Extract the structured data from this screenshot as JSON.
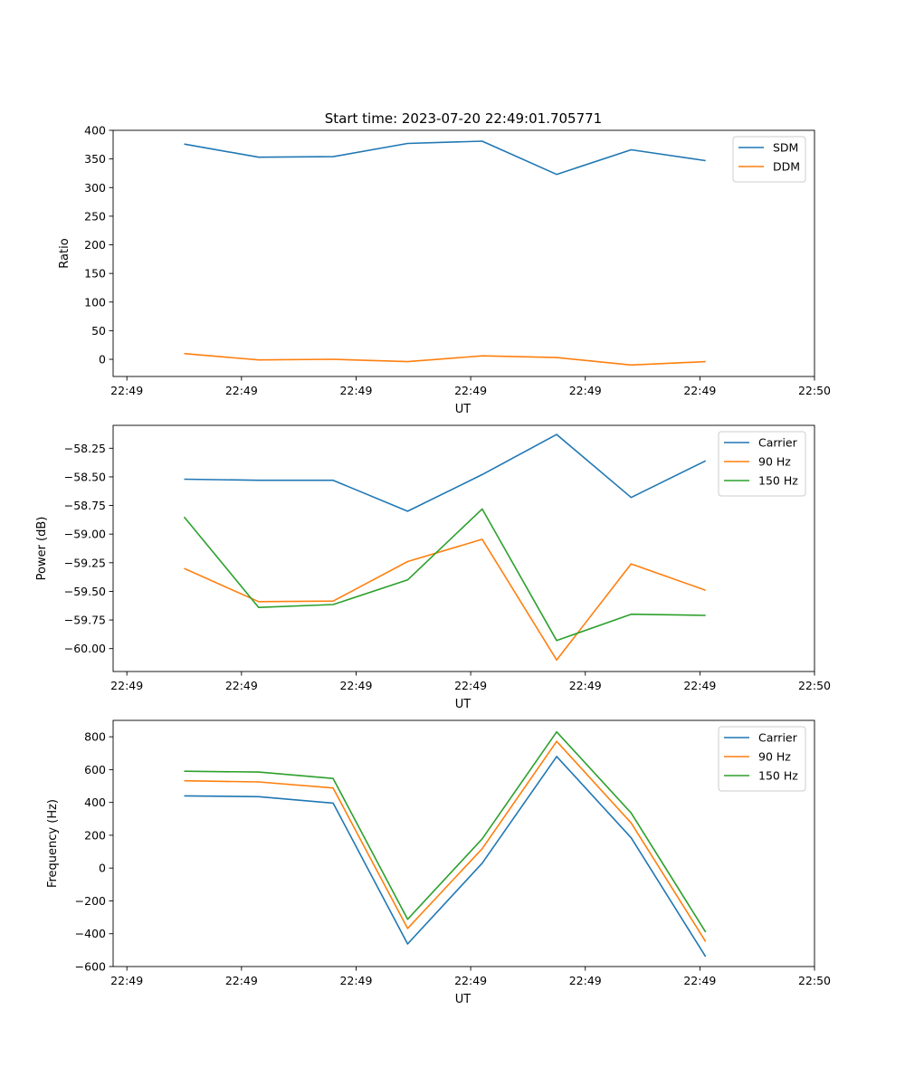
{
  "title": "Start time: 2023-07-20 22:49:01.705771",
  "colors": {
    "blue": "#1f77b4",
    "orange": "#ff7f0e",
    "green": "#2ca02c"
  },
  "chart_data": [
    {
      "type": "line",
      "title": "Start time: 2023-07-20 22:49:01.705771",
      "xlabel": "UT",
      "ylabel": "Ratio",
      "x": [
        0.5,
        1.15,
        1.8,
        2.45,
        3.1,
        3.75,
        4.4,
        5.05
      ],
      "x_ticks": [
        0,
        1,
        2,
        3,
        4,
        5,
        6
      ],
      "x_tick_labels": [
        "22:49",
        "22:49",
        "22:49",
        "22:49",
        "22:49",
        "22:49",
        "22:50"
      ],
      "xlim": [
        -0.12,
        6.0
      ],
      "ylim": [
        -30,
        400
      ],
      "y_ticks": [
        0,
        50,
        100,
        150,
        200,
        250,
        300,
        350,
        400
      ],
      "y_tick_labels": [
        "0",
        "50",
        "100",
        "150",
        "200",
        "250",
        "300",
        "350",
        "400"
      ],
      "legend": "top-right",
      "grid": false,
      "series": [
        {
          "name": "SDM",
          "color": "#1f77b4",
          "values": [
            376,
            353,
            354,
            377,
            381,
            323,
            366,
            347
          ]
        },
        {
          "name": "DDM",
          "color": "#ff7f0e",
          "values": [
            10,
            -1,
            0,
            -4,
            6,
            3,
            -10,
            -4
          ]
        }
      ]
    },
    {
      "type": "line",
      "title": "",
      "xlabel": "UT",
      "ylabel": "Power (dB)",
      "x": [
        0.5,
        1.15,
        1.8,
        2.45,
        3.1,
        3.75,
        4.4,
        5.05
      ],
      "x_ticks": [
        0,
        1,
        2,
        3,
        4,
        5,
        6
      ],
      "x_tick_labels": [
        "22:49",
        "22:49",
        "22:49",
        "22:49",
        "22:49",
        "22:49",
        "22:50"
      ],
      "xlim": [
        -0.12,
        6.0
      ],
      "ylim": [
        -60.2,
        -58.05
      ],
      "y_ticks": [
        -60.0,
        -59.75,
        -59.5,
        -59.25,
        -59.0,
        -58.75,
        -58.5,
        -58.25
      ],
      "y_tick_labels": [
        "−60.00",
        "−59.75",
        "−59.50",
        "−59.25",
        "−59.00",
        "−58.75",
        "−58.50",
        "−58.25"
      ],
      "legend": "top-right",
      "grid": false,
      "series": [
        {
          "name": "Carrier",
          "color": "#1f77b4",
          "values": [
            -58.52,
            -58.53,
            -58.53,
            -58.8,
            -58.48,
            -58.13,
            -58.68,
            -58.36
          ]
        },
        {
          "name": "90 Hz",
          "color": "#ff7f0e",
          "values": [
            -59.3,
            -59.59,
            -59.585,
            -59.24,
            -59.045,
            -60.1,
            -59.26,
            -59.49
          ]
        },
        {
          "name": "150 Hz",
          "color": "#2ca02c",
          "values": [
            -58.85,
            -59.64,
            -59.615,
            -59.4,
            -58.78,
            -59.93,
            -59.7,
            -59.71
          ]
        }
      ]
    },
    {
      "type": "line",
      "title": "",
      "xlabel": "UT",
      "ylabel": "Frequency (Hz)",
      "x": [
        0.5,
        1.15,
        1.8,
        2.45,
        3.1,
        3.75,
        4.4,
        5.05
      ],
      "x_ticks": [
        0,
        1,
        2,
        3,
        4,
        5,
        6
      ],
      "x_tick_labels": [
        "22:49",
        "22:49",
        "22:49",
        "22:49",
        "22:49",
        "22:49",
        "22:50"
      ],
      "xlim": [
        -0.12,
        6.0
      ],
      "ylim": [
        -600,
        900
      ],
      "y_ticks": [
        -600,
        -400,
        -200,
        0,
        200,
        400,
        600,
        800
      ],
      "y_tick_labels": [
        "−600",
        "−400",
        "−200",
        "0",
        "200",
        "400",
        "600",
        "800"
      ],
      "legend": "top-right",
      "grid": false,
      "series": [
        {
          "name": "Carrier",
          "color": "#1f77b4",
          "values": [
            440,
            435,
            396,
            -462,
            30,
            680,
            185,
            -540
          ]
        },
        {
          "name": "90 Hz",
          "color": "#ff7f0e",
          "values": [
            532,
            525,
            488,
            -368,
            118,
            772,
            275,
            -448
          ]
        },
        {
          "name": "150 Hz",
          "color": "#2ca02c",
          "values": [
            590,
            585,
            546,
            -312,
            178,
            830,
            336,
            -390
          ]
        }
      ]
    }
  ]
}
